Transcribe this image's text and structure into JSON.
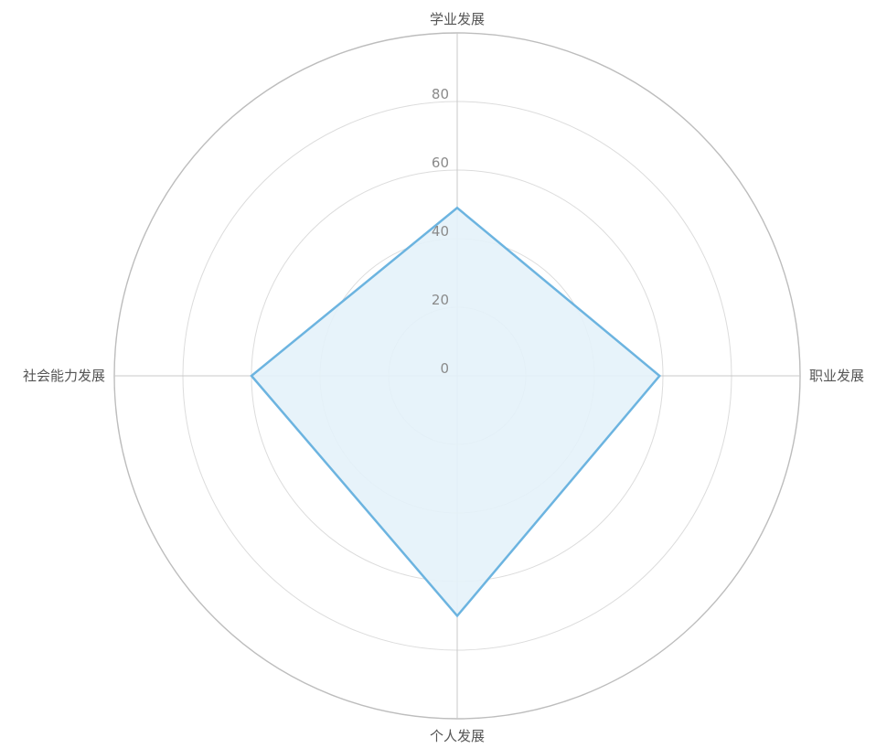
{
  "chart_data": {
    "type": "radar",
    "axes": [
      "学业发展",
      "职业发展",
      "个人发展",
      "社会能力发展"
    ],
    "series": [
      {
        "values": [
          49,
          59,
          70,
          60
        ]
      }
    ],
    "rlim": [
      0,
      100
    ],
    "ticks": [
      0,
      20,
      40,
      60,
      80
    ],
    "tick_labels": [
      "0",
      "20",
      "40",
      "60",
      "80"
    ],
    "grid": true,
    "colors": {
      "line": "#6cb4e0",
      "fill": "#e4f2f9"
    }
  }
}
